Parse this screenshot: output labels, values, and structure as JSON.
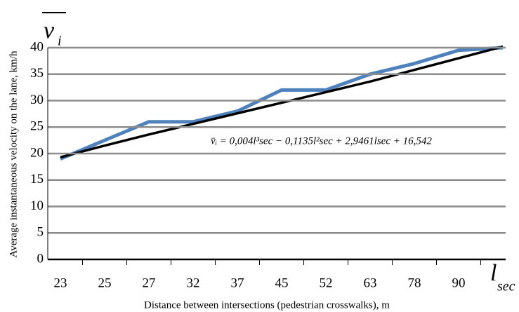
{
  "chart_data": {
    "type": "line",
    "y_label": "Average instantaneous velocity on the lane, km/h",
    "x_label": "Distance between intersections (pedestrian crosswalks), m",
    "y_symbol": "v",
    "y_symbol_sub": "i",
    "x_symbol": "l",
    "x_symbol_sub": "sec",
    "annotation": "v̄ᵢ = 0,004l³sec − 0,1135l²sec + 2,9461lsec + 16,542",
    "categories": [
      "23",
      "25",
      "27",
      "32",
      "37",
      "45",
      "52",
      "63",
      "78",
      "90",
      null
    ],
    "series": [
      {
        "color": "#4f81bd",
        "values": [
          19,
          22.5,
          26,
          26,
          28,
          32,
          32,
          35,
          37,
          39.5,
          40
        ]
      },
      {
        "color": "#000000",
        "values": [
          19.3,
          21.5,
          23.6,
          25.6,
          27.6,
          29.6,
          31.6,
          33.6,
          35.8,
          38,
          40.2
        ]
      }
    ],
    "ylim": [
      0,
      40
    ],
    "yticks": [
      0,
      5,
      10,
      15,
      20,
      25,
      30,
      35,
      40
    ],
    "grid": true
  }
}
